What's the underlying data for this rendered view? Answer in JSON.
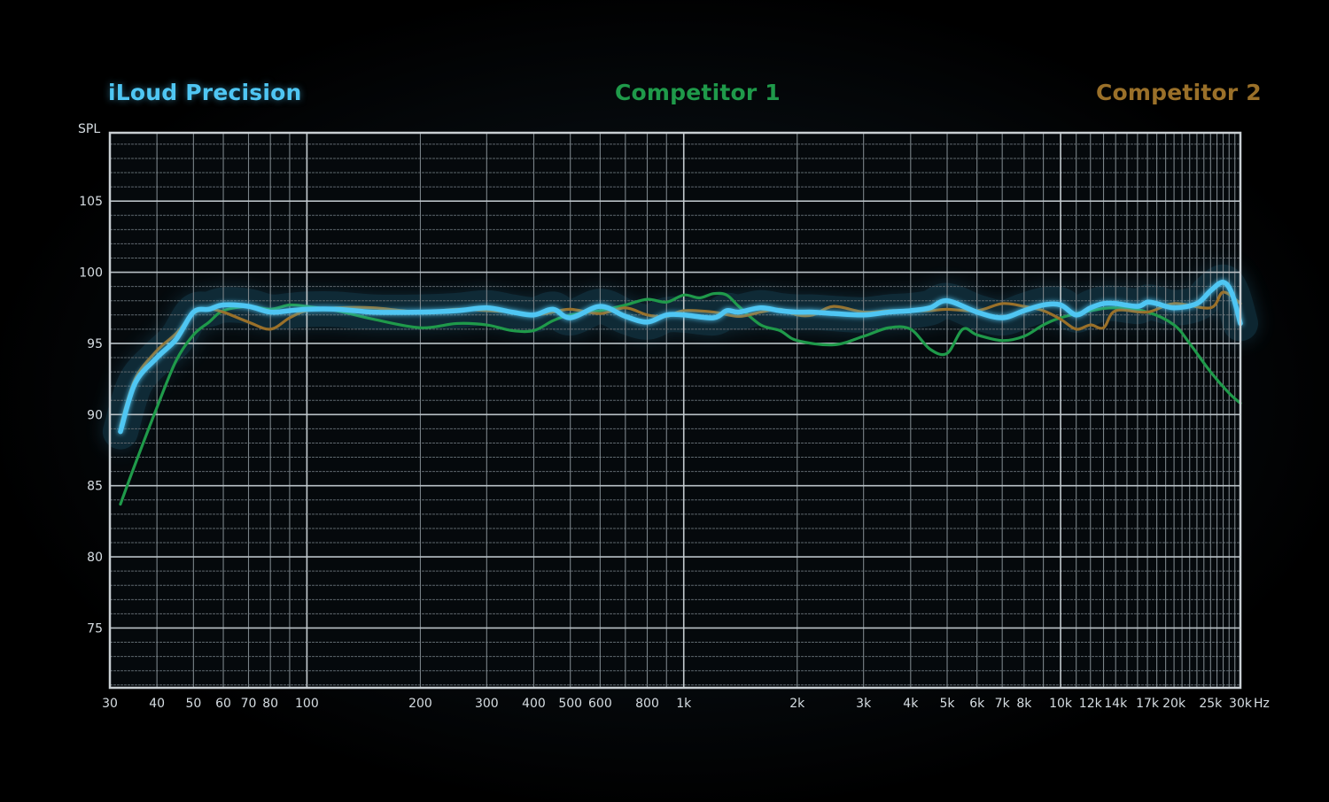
{
  "legend": {
    "series_a": "iLoud Precision",
    "series_b": "Competitor 1",
    "series_c": "Competitor 2"
  },
  "axes": {
    "y_unit": "SPL",
    "x_unit": "Hz"
  },
  "chart_data": {
    "type": "line",
    "title": "",
    "xlabel": "Hz",
    "ylabel": "SPL",
    "x_scale": "log",
    "xlim": [
      30,
      30000
    ],
    "ylim": [
      70.8,
      109.8
    ],
    "grid": true,
    "legend_position": "top",
    "y_ticks": [
      75,
      80,
      85,
      90,
      95,
      100,
      105
    ],
    "x_ticks": [
      {
        "v": 30,
        "label": "30"
      },
      {
        "v": 40,
        "label": "40"
      },
      {
        "v": 50,
        "label": "50"
      },
      {
        "v": 60,
        "label": "60"
      },
      {
        "v": 70,
        "label": "70"
      },
      {
        "v": 80,
        "label": "80"
      },
      {
        "v": 100,
        "label": "100"
      },
      {
        "v": 200,
        "label": "200"
      },
      {
        "v": 300,
        "label": "300"
      },
      {
        "v": 400,
        "label": "400"
      },
      {
        "v": 500,
        "label": "500"
      },
      {
        "v": 600,
        "label": "600"
      },
      {
        "v": 800,
        "label": "800"
      },
      {
        "v": 1000,
        "label": "1k"
      },
      {
        "v": 2000,
        "label": "2k"
      },
      {
        "v": 3000,
        "label": "3k"
      },
      {
        "v": 4000,
        "label": "4k"
      },
      {
        "v": 5000,
        "label": "5k"
      },
      {
        "v": 6000,
        "label": "6k"
      },
      {
        "v": 7000,
        "label": "7k"
      },
      {
        "v": 8000,
        "label": "8k"
      },
      {
        "v": 10000,
        "label": "10k"
      },
      {
        "v": 12000,
        "label": "12k"
      },
      {
        "v": 14000,
        "label": "14k"
      },
      {
        "v": 17000,
        "label": "17k"
      },
      {
        "v": 20000,
        "label": "20k"
      },
      {
        "v": 25000,
        "label": "25k"
      },
      {
        "v": 30000,
        "label": "30k"
      }
    ],
    "series": [
      {
        "name": "Competitor 1",
        "color": "#1f9a4a",
        "x": [
          32,
          35,
          40,
          45,
          50,
          55,
          60,
          70,
          80,
          90,
          100,
          120,
          150,
          200,
          250,
          300,
          350,
          400,
          450,
          500,
          600,
          700,
          800,
          900,
          1000,
          1100,
          1200,
          1300,
          1400,
          1600,
          1800,
          2000,
          2500,
          3000,
          3500,
          4000,
          4500,
          5000,
          5500,
          6000,
          7000,
          8000,
          9000,
          10000,
          12000,
          14000,
          17000,
          20000,
          22000,
          25000,
          28000,
          30000
        ],
        "values": [
          83.7,
          86.5,
          90.5,
          93.8,
          95.6,
          96.5,
          97.3,
          97.6,
          97.4,
          97.7,
          97.6,
          97.3,
          96.7,
          96.1,
          96.4,
          96.3,
          95.9,
          95.9,
          96.6,
          97.0,
          97.3,
          97.7,
          98.1,
          97.9,
          98.4,
          98.2,
          98.5,
          98.4,
          97.6,
          96.3,
          95.9,
          95.2,
          94.9,
          95.5,
          96.1,
          96.0,
          94.6,
          94.3,
          96.0,
          95.6,
          95.2,
          95.5,
          96.3,
          96.8,
          97.3,
          97.5,
          97.2,
          96.3,
          95.0,
          93.0,
          91.5,
          90.8
        ]
      },
      {
        "name": "Competitor 2",
        "color": "#9a7029",
        "x": [
          32,
          35,
          40,
          45,
          50,
          55,
          60,
          70,
          80,
          90,
          100,
          120,
          150,
          200,
          250,
          300,
          350,
          400,
          450,
          500,
          600,
          700,
          800,
          900,
          1000,
          1200,
          1400,
          1600,
          1800,
          2000,
          2200,
          2500,
          3000,
          3500,
          4000,
          4500,
          5000,
          6000,
          7000,
          8000,
          9000,
          10000,
          11000,
          12000,
          13000,
          14000,
          17000,
          20000,
          25000,
          27000,
          30000
        ],
        "values": [
          89.2,
          92.5,
          94.5,
          95.7,
          97.1,
          97.4,
          97.2,
          96.5,
          96.0,
          96.8,
          97.3,
          97.5,
          97.5,
          97.2,
          97.4,
          97.3,
          97.2,
          97.0,
          97.2,
          97.4,
          97.1,
          97.5,
          97.0,
          96.9,
          97.3,
          97.2,
          96.9,
          97.2,
          97.4,
          97.0,
          97.0,
          97.6,
          97.2,
          97.3,
          97.3,
          97.3,
          97.4,
          97.3,
          97.8,
          97.6,
          97.3,
          96.7,
          96.0,
          96.3,
          96.1,
          97.3,
          97.2,
          97.8,
          97.5,
          98.6,
          97.8
        ]
      },
      {
        "name": "iLoud Precision",
        "color": "#4fc6f3",
        "x": [
          32,
          35,
          40,
          45,
          50,
          55,
          60,
          70,
          80,
          90,
          100,
          120,
          150,
          200,
          250,
          300,
          350,
          400,
          450,
          500,
          600,
          700,
          800,
          900,
          1000,
          1200,
          1300,
          1400,
          1600,
          1800,
          2000,
          2200,
          2500,
          3000,
          3500,
          4000,
          4500,
          5000,
          6000,
          7000,
          8000,
          9000,
          10000,
          11000,
          12000,
          13000,
          14000,
          16000,
          17000,
          18000,
          20000,
          23000,
          25000,
          27000,
          28500,
          30000
        ],
        "values": [
          88.8,
          92.2,
          94.0,
          95.3,
          97.2,
          97.4,
          97.7,
          97.6,
          97.2,
          97.3,
          97.4,
          97.4,
          97.2,
          97.2,
          97.3,
          97.5,
          97.2,
          97.0,
          97.4,
          96.8,
          97.6,
          96.9,
          96.5,
          97.0,
          97.0,
          96.8,
          97.3,
          97.2,
          97.5,
          97.3,
          97.2,
          97.2,
          97.1,
          97.0,
          97.2,
          97.3,
          97.5,
          98.0,
          97.2,
          96.8,
          97.3,
          97.7,
          97.7,
          97.0,
          97.5,
          97.8,
          97.8,
          97.6,
          97.9,
          97.8,
          97.5,
          97.8,
          98.7,
          99.3,
          98.5,
          96.4
        ]
      }
    ]
  }
}
